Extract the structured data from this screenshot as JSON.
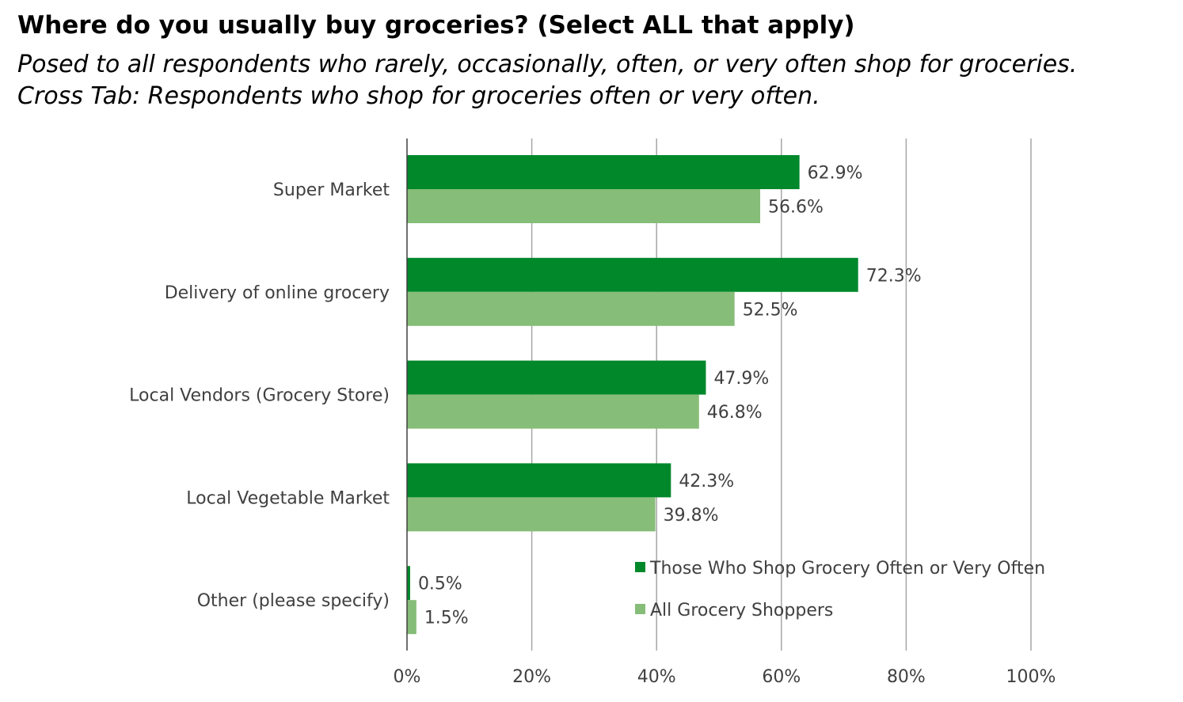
{
  "title": "Where do you usually buy groceries? (Select ALL that apply)",
  "subtitle_lines": [
    "Posed to all respondents who rarely, occasionally, often, or very often shop for groceries.",
    "Cross Tab: Respondents who shop for groceries often or very often."
  ],
  "chart_data": {
    "type": "bar",
    "orientation": "horizontal",
    "categories": [
      "Super Market",
      "Delivery of online grocery",
      "Local Vendors (Grocery Store)",
      "Local Vegetable Market",
      "Other (please specify)"
    ],
    "series": [
      {
        "name": "Those Who Shop Grocery Often or Very Often",
        "values": [
          62.9,
          72.3,
          47.9,
          42.3,
          0.5
        ],
        "color": "#00882b"
      },
      {
        "name": "All Grocery Shoppers",
        "values": [
          56.6,
          52.5,
          46.8,
          39.8,
          1.5
        ],
        "color": "#86bd78"
      }
    ],
    "data_labels": [
      [
        "62.9%",
        "72.3%",
        "47.9%",
        "42.3%",
        "0.5%"
      ],
      [
        "56.6%",
        "52.5%",
        "46.8%",
        "39.8%",
        "1.5%"
      ]
    ],
    "x_ticks": [
      "0%",
      "20%",
      "40%",
      "60%",
      "80%",
      "100%"
    ],
    "xlim": [
      0,
      100
    ],
    "grid": true,
    "legend_position": "bottom-right, inside plot"
  }
}
